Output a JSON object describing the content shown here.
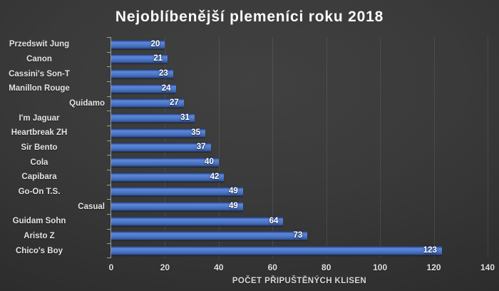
{
  "title": "Nejoblíbenější plemeníci roku 2018",
  "chart_data": {
    "type": "bar",
    "orientation": "horizontal",
    "title": "Nejoblíbenější plemeníci roku 2018",
    "categories": [
      "Przedswit Jung",
      "Canon",
      "Cassini's Son-T",
      "Manillon Rouge",
      "Quidamo",
      "I'm Jaguar",
      "Heartbreak ZH",
      "Sir Bento",
      "Cola",
      "Capibara",
      "Go-On T.S.",
      "Casual",
      "Guidam Sohn",
      "Aristo Z",
      "Chico's Boy"
    ],
    "values": [
      20,
      21,
      23,
      24,
      27,
      31,
      35,
      37,
      40,
      42,
      49,
      49,
      64,
      73,
      123
    ],
    "indented_categories": [
      "Quidamo",
      "Casual"
    ],
    "xlabel": "POČET PŘIPUŠTĚNÝCH KLISEN",
    "ylabel": "",
    "xlim": [
      0,
      140
    ],
    "xticks": [
      0,
      20,
      40,
      60,
      80,
      100,
      120,
      140
    ],
    "grid": true,
    "legend": "none",
    "value_labels_position": "inside-end",
    "colors": {
      "bar": "#4472c4",
      "bar_highlight": "#5b87da",
      "bar_shadow": "#1b2a4d",
      "background_center": "#3e3e3e",
      "background_edge": "#232323",
      "title_text": "#fbfbfb",
      "label_text": "#e3e3e3",
      "axis_line": "#9f9f9f",
      "gridline": "rgba(255,255,255,0.09)",
      "value_text": "#ffffff"
    }
  }
}
